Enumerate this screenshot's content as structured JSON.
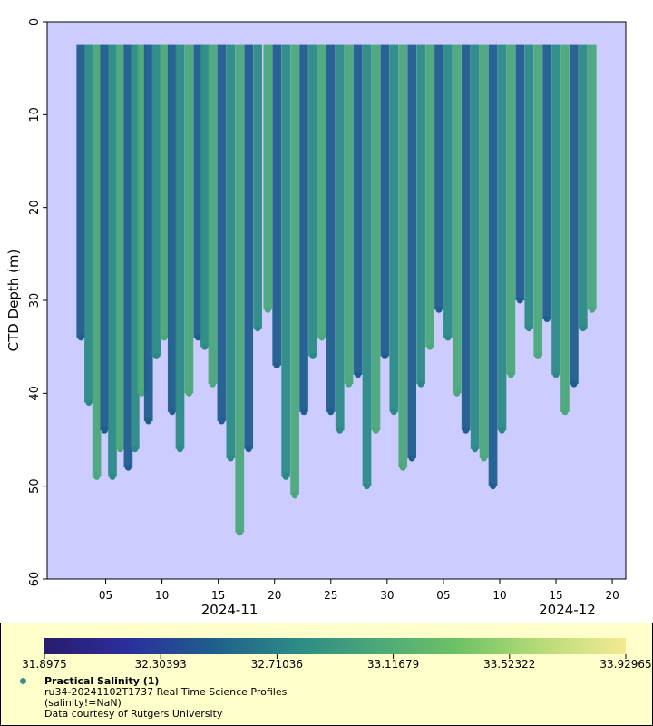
{
  "chart_data": {
    "type": "scatter",
    "ylabel": "CTD Depth (m)",
    "ylim": [
      60,
      0
    ],
    "y_ticks": [
      0,
      10,
      20,
      30,
      40,
      50,
      60
    ],
    "x_ticks": [
      {
        "label": "05",
        "day": 5
      },
      {
        "label": "10",
        "day": 10
      },
      {
        "label": "15",
        "day": 15
      },
      {
        "label": "20",
        "day": 20
      },
      {
        "label": "25",
        "day": 25
      },
      {
        "label": "30",
        "day": 30
      },
      {
        "label": "05",
        "day": 35
      },
      {
        "label": "10",
        "day": 40
      },
      {
        "label": "15",
        "day": 45
      },
      {
        "label": "20",
        "day": 50
      }
    ],
    "month_labels": [
      {
        "label": "2024-11",
        "day": 16
      },
      {
        "label": "2024-12",
        "day": 46
      }
    ],
    "grid": false,
    "background": "#ccccff",
    "colorbar": {
      "ticks": [
        "31.8975",
        "32.30393",
        "32.71036",
        "33.11679",
        "33.52322",
        "33.92965"
      ],
      "colors": [
        "#2a1b6e",
        "#2b2f9c",
        "#1f5d8e",
        "#2b8a86",
        "#4aa87a",
        "#6fc265",
        "#b8dc78",
        "#f4ea92"
      ]
    },
    "profile_bottoms": [
      {
        "day": 2.8,
        "depth": 34
      },
      {
        "day": 3.5,
        "depth": 41
      },
      {
        "day": 4.2,
        "depth": 49
      },
      {
        "day": 4.9,
        "depth": 44
      },
      {
        "day": 5.6,
        "depth": 49
      },
      {
        "day": 6.3,
        "depth": 46
      },
      {
        "day": 7.0,
        "depth": 48
      },
      {
        "day": 7.6,
        "depth": 46
      },
      {
        "day": 8.2,
        "depth": 40
      },
      {
        "day": 8.8,
        "depth": 43
      },
      {
        "day": 9.5,
        "depth": 36
      },
      {
        "day": 10.2,
        "depth": 34
      },
      {
        "day": 10.9,
        "depth": 42
      },
      {
        "day": 11.6,
        "depth": 46
      },
      {
        "day": 12.4,
        "depth": 40
      },
      {
        "day": 13.2,
        "depth": 34
      },
      {
        "day": 13.8,
        "depth": 35
      },
      {
        "day": 14.5,
        "depth": 39
      },
      {
        "day": 15.3,
        "depth": 43
      },
      {
        "day": 16.1,
        "depth": 47
      },
      {
        "day": 16.9,
        "depth": 55
      },
      {
        "day": 17.7,
        "depth": 46
      },
      {
        "day": 18.5,
        "depth": 33
      },
      {
        "day": 19.4,
        "depth": 31
      },
      {
        "day": 20.2,
        "depth": 37
      },
      {
        "day": 21.0,
        "depth": 49
      },
      {
        "day": 21.8,
        "depth": 51
      },
      {
        "day": 22.6,
        "depth": 42
      },
      {
        "day": 23.4,
        "depth": 36
      },
      {
        "day": 24.2,
        "depth": 34
      },
      {
        "day": 25.0,
        "depth": 42
      },
      {
        "day": 25.8,
        "depth": 44
      },
      {
        "day": 26.6,
        "depth": 39
      },
      {
        "day": 27.4,
        "depth": 38
      },
      {
        "day": 28.2,
        "depth": 50
      },
      {
        "day": 29.0,
        "depth": 44
      },
      {
        "day": 29.8,
        "depth": 36
      },
      {
        "day": 30.6,
        "depth": 42
      },
      {
        "day": 31.4,
        "depth": 48
      },
      {
        "day": 32.2,
        "depth": 47
      },
      {
        "day": 33.0,
        "depth": 39
      },
      {
        "day": 33.8,
        "depth": 35
      },
      {
        "day": 34.6,
        "depth": 31
      },
      {
        "day": 35.4,
        "depth": 34
      },
      {
        "day": 36.2,
        "depth": 40
      },
      {
        "day": 37.0,
        "depth": 44
      },
      {
        "day": 37.8,
        "depth": 46
      },
      {
        "day": 38.6,
        "depth": 47
      },
      {
        "day": 39.4,
        "depth": 50
      },
      {
        "day": 40.2,
        "depth": 44
      },
      {
        "day": 41.0,
        "depth": 38
      },
      {
        "day": 41.8,
        "depth": 30
      },
      {
        "day": 42.6,
        "depth": 33
      },
      {
        "day": 43.4,
        "depth": 36
      },
      {
        "day": 44.2,
        "depth": 32
      },
      {
        "day": 45.0,
        "depth": 38
      },
      {
        "day": 45.8,
        "depth": 42
      },
      {
        "day": 46.6,
        "depth": 39
      },
      {
        "day": 47.4,
        "depth": 33
      },
      {
        "day": 48.2,
        "depth": 31
      }
    ],
    "surface_min_depth": 2.5
  },
  "legend": {
    "title": "Practical Salinity (1)",
    "line1": "ru34-20241102T1737 Real Time Science Profiles",
    "line2": "(salinity!=NaN)",
    "line3": "Data courtesy of Rutgers University"
  }
}
